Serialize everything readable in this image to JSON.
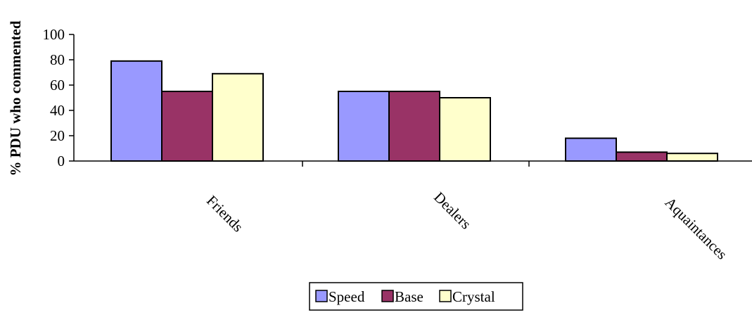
{
  "chart_data": {
    "type": "bar",
    "title": "",
    "xlabel": "",
    "ylabel": "% PDU who commented",
    "ylim": [
      0,
      100
    ],
    "yticks": [
      "0",
      "20",
      "40",
      "60",
      "80",
      "100"
    ],
    "grid": false,
    "legend": "bottom-center",
    "categories": [
      "Friends",
      "Dealers",
      "Aquaintances"
    ],
    "series": [
      {
        "name": "Speed",
        "color": "#9999ff",
        "values": [
          79,
          55,
          18
        ]
      },
      {
        "name": "Base",
        "color": "#993366",
        "values": [
          55,
          55,
          7
        ]
      },
      {
        "name": "Crystal",
        "color": "#ffffcc",
        "values": [
          69,
          50,
          6
        ]
      }
    ]
  }
}
